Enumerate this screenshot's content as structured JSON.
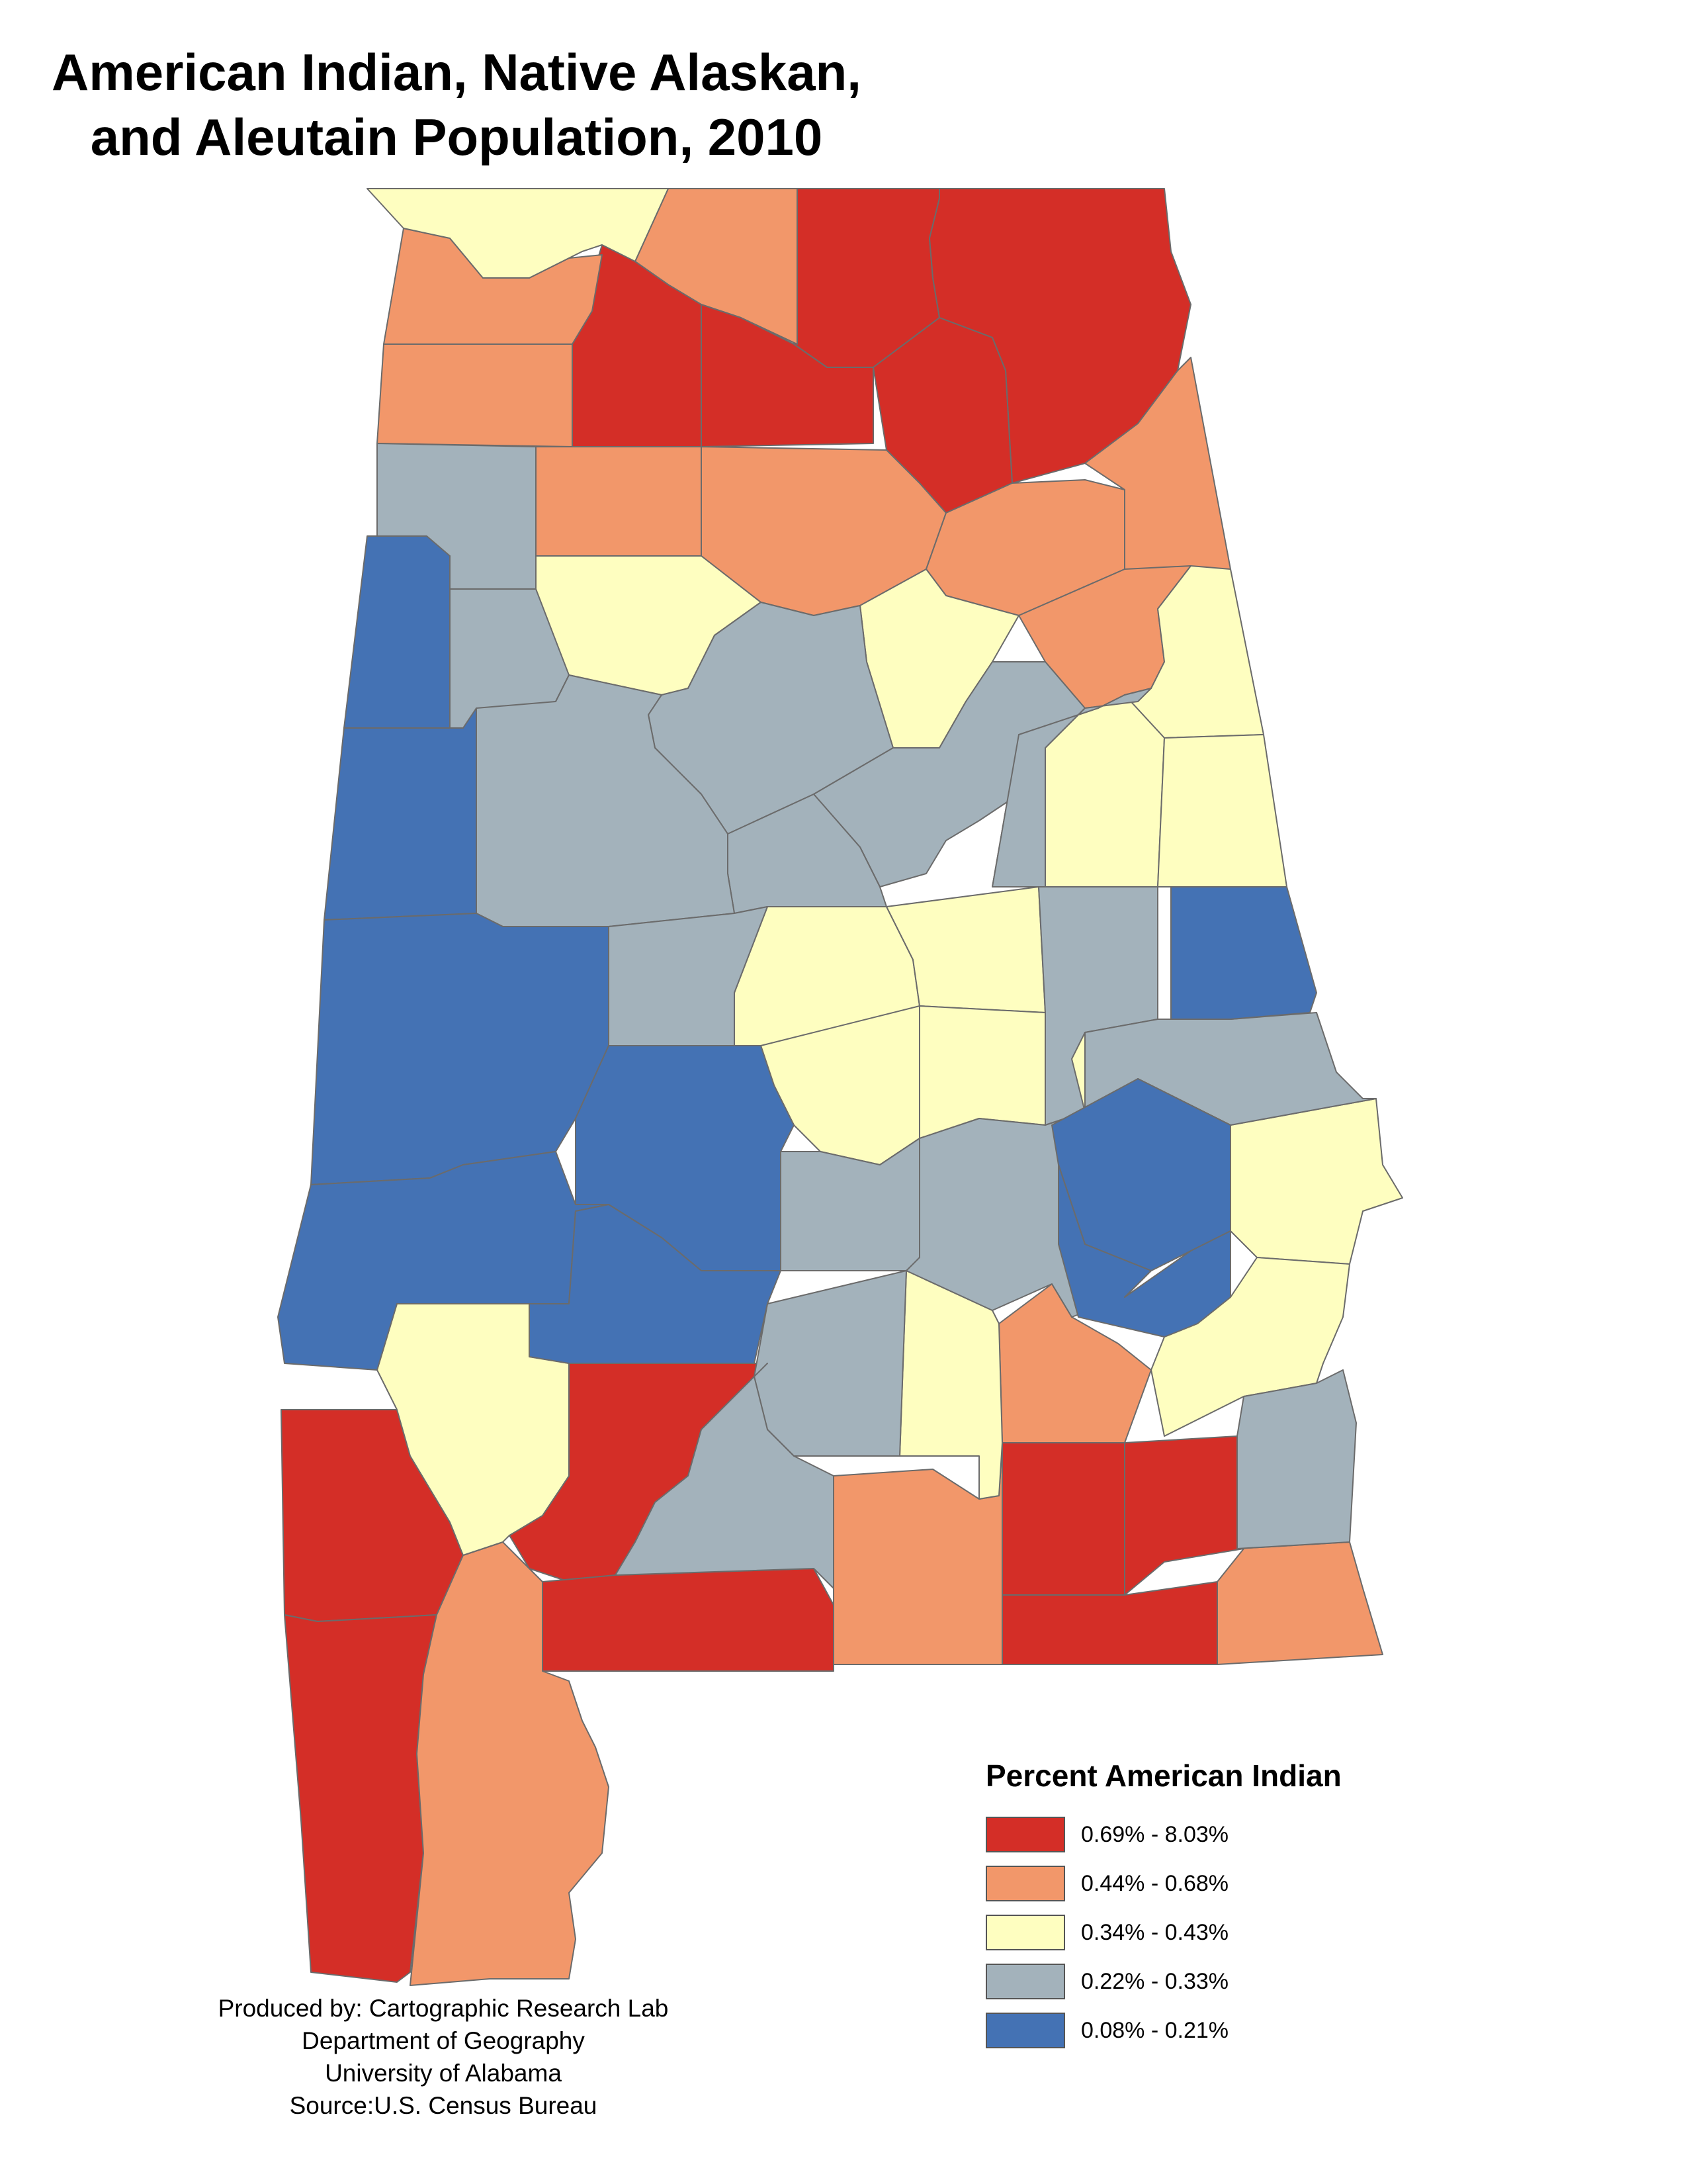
{
  "title": {
    "line1": "American Indian, Native Alaskan,",
    "line2": "and Aleutain Population, 2010"
  },
  "legend": {
    "title": "Percent American Indian",
    "classes": [
      {
        "label": "0.69% - 8.03%",
        "color": "#d42e27"
      },
      {
        "label": "0.44% - 0.68%",
        "color": "#f2976a"
      },
      {
        "label": "0.34% - 0.43%",
        "color": "#fefec0"
      },
      {
        "label": "0.22% - 0.33%",
        "color": "#a3b2bb"
      },
      {
        "label": "0.08% - 0.21%",
        "color": "#4472b4"
      }
    ]
  },
  "credits": [
    "Produced by: Cartographic Research Lab",
    "Department of Geography",
    "University of Alabama",
    "Source:U.S. Census Bureau"
  ]
}
